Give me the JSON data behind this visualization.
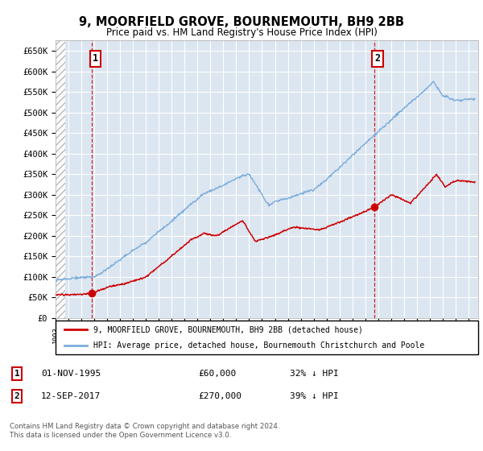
{
  "title": "9, MOORFIELD GROVE, BOURNEMOUTH, BH9 2BB",
  "subtitle": "Price paid vs. HM Land Registry's House Price Index (HPI)",
  "ylabel_ticks": [
    "£0",
    "£50K",
    "£100K",
    "£150K",
    "£200K",
    "£250K",
    "£300K",
    "£350K",
    "£400K",
    "£450K",
    "£500K",
    "£550K",
    "£600K",
    "£650K"
  ],
  "ytick_values": [
    0,
    50000,
    100000,
    150000,
    200000,
    250000,
    300000,
    350000,
    400000,
    450000,
    500000,
    550000,
    600000,
    650000
  ],
  "ylim": [
    0,
    675000
  ],
  "xlim_start": 1993.0,
  "xlim_end": 2025.75,
  "hpi_color": "#7aaddb",
  "price_color": "#cc0000",
  "marker1_date": 1995.83,
  "marker1_price": 60000,
  "marker1_label": "1",
  "marker2_date": 2017.7,
  "marker2_price": 270000,
  "marker2_label": "2",
  "legend_line1": "9, MOORFIELD GROVE, BOURNEMOUTH, BH9 2BB (detached house)",
  "legend_line2": "HPI: Average price, detached house, Bournemouth Christchurch and Poole",
  "footer": "Contains HM Land Registry data © Crown copyright and database right 2024.\nThis data is licensed under the Open Government Licence v3.0.",
  "bg_color": "#dce6f1",
  "grid_color": "#ffffff",
  "hatch_xlim_end": 1993.75
}
